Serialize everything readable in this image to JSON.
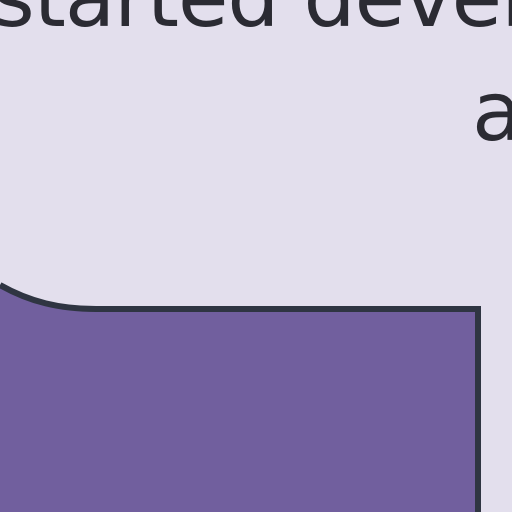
{
  "text": {
    "line_1": "started develop",
    "line_2": "a"
  },
  "colors": {
    "background": "#e3dfed",
    "text": "#2b2b33",
    "shape_fill": "#715f9e",
    "shape_stroke": "#2f3542"
  }
}
